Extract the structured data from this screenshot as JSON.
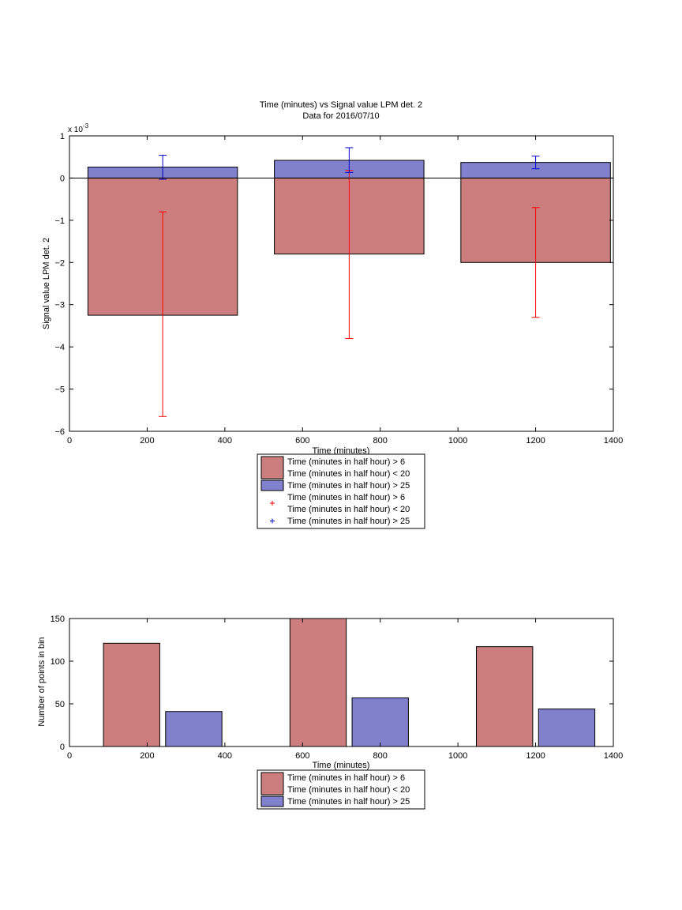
{
  "figure": {
    "title_line1": "Time (minutes) vs Signal value LPM det. 2",
    "title_line2": "Data for 2016/07/10"
  },
  "colors": {
    "red_fill": "#CC7E7E",
    "blue_fill": "#8080CC",
    "red_err": "#FF0000",
    "blue_err": "#0000CC",
    "axis": "#000000"
  },
  "chart_data": [
    {
      "type": "bar",
      "title": "Time (minutes) vs Signal value LPM det. 2",
      "subtitle": "Data for 2016/07/10",
      "xlabel": "Time (minutes)",
      "ylabel": "Signal value LPM det. 2",
      "ylabel_exponent": "x 10",
      "ylabel_exponent_power": "-3",
      "xlim": [
        0,
        1400
      ],
      "ylim": [
        -6,
        1
      ],
      "xticks": [
        "0",
        "200",
        "400",
        "600",
        "800",
        "1000",
        "1200",
        "1400"
      ],
      "yticks": [
        "1",
        "0",
        "−1",
        "−2",
        "−3",
        "−4",
        "−5",
        "−6"
      ],
      "x": [
        240,
        720,
        1200
      ],
      "bar_width": 385,
      "series": [
        {
          "name": "Time (minutes in half hour) > 6 Time (minutes in half hour) < 20",
          "color": "#CC7E7E",
          "values": [
            -3.25,
            -1.8,
            -2.0
          ],
          "err_low": [
            -5.65,
            -3.8,
            -3.3
          ],
          "err_high": [
            -0.8,
            0.18,
            -0.7
          ],
          "err_color": "#FF0000"
        },
        {
          "name": "Time (minutes in half hour) > 25",
          "color": "#8080CC",
          "values": [
            0.26,
            0.42,
            0.37
          ],
          "err_low": [
            -0.03,
            0.13,
            0.22
          ],
          "err_high": [
            0.54,
            0.72,
            0.52
          ],
          "err_color": "#0000CC"
        }
      ],
      "legend": [
        {
          "kind": "patch",
          "color": "#CC7E7E",
          "line1": "Time (minutes in half hour) > 6",
          "line2": "Time (minutes in half hour) < 20"
        },
        {
          "kind": "patch",
          "color": "#8080CC",
          "line1": "Time (minutes in half hour) > 25",
          "line2": ""
        },
        {
          "kind": "marker",
          "color": "#FF0000",
          "line1": "Time (minutes in half hour) > 6",
          "line2": "Time (minutes in half hour) < 20"
        },
        {
          "kind": "marker",
          "color": "#0000CC",
          "line1": "Time (minutes in half hour) > 25",
          "line2": ""
        }
      ],
      "legend_placement": "below"
    },
    {
      "type": "bar",
      "xlabel": "Time (minutes)",
      "ylabel": "Number of points in bin",
      "xlim": [
        0,
        1400
      ],
      "ylim": [
        0,
        150
      ],
      "xticks": [
        "0",
        "200",
        "400",
        "600",
        "800",
        "1000",
        "1200",
        "1400"
      ],
      "yticks": [
        "0",
        "50",
        "100",
        "150"
      ],
      "bar_width": 145,
      "series": [
        {
          "name": "Time (minutes in half hour) > 6 Time (minutes in half hour) < 20",
          "color": "#CC7E7E",
          "x": [
            160,
            640,
            1120
          ],
          "values": [
            121,
            150,
            117
          ]
        },
        {
          "name": "Time (minutes in half hour) > 25",
          "color": "#8080CC",
          "x": [
            320,
            800,
            1280
          ],
          "values": [
            41,
            57,
            44
          ]
        }
      ],
      "legend": [
        {
          "kind": "patch",
          "color": "#CC7E7E",
          "line1": "Time (minutes in half hour) > 6",
          "line2": "Time (minutes in half hour) < 20"
        },
        {
          "kind": "patch",
          "color": "#8080CC",
          "line1": "Time (minutes in half hour) > 25",
          "line2": ""
        }
      ],
      "legend_placement": "below"
    }
  ]
}
